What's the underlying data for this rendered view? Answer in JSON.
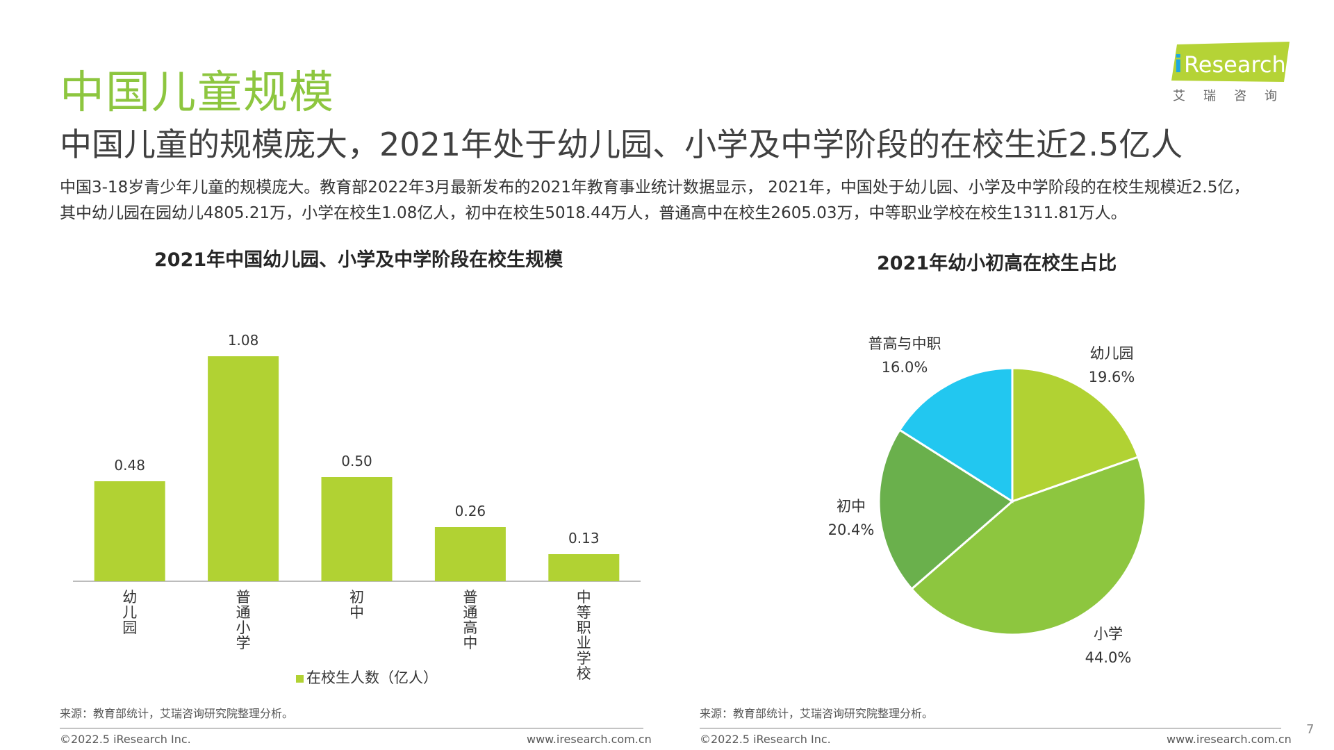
{
  "header": {
    "title": "中国儿童规模",
    "subtitle": "中国儿童的规模庞大，2021年处于幼儿园、小学及中学阶段的在校生近2.5亿人",
    "description_line1": "中国3-18岁青少年儿童的规模庞大。教育部2022年3月最新发布的2021年教育事业统计数据显示， 2021年，中国处于幼儿园、小学及中学阶段的在校生规模近2.5亿，",
    "description_line2": "其中幼儿园在园幼儿4805.21万，小学在校生1.08亿人，初中在校生5018.44万人，普通高中在校生2605.03万，中等职业学校在校生1311.81万人。"
  },
  "logo": {
    "brand_i": "i",
    "brand_rest": "Research",
    "chinese": "艾瑞咨询"
  },
  "chart_data": [
    {
      "type": "bar",
      "title": "2021年中国幼儿园、小学及中学阶段在校生规模",
      "categories": [
        "幼儿园",
        "普通小学",
        "初中",
        "普通高中",
        "中等职业学校"
      ],
      "series": [
        {
          "name": "在校生人数（亿人）",
          "values": [
            0.48,
            1.08,
            0.5,
            0.26,
            0.13
          ]
        }
      ],
      "value_labels": [
        "0.48",
        "1.08",
        "0.50",
        "0.26",
        "0.13"
      ],
      "ylim": [
        0,
        1.2
      ],
      "grid": false,
      "legend": "bottom",
      "color": "#b1d233"
    },
    {
      "type": "pie",
      "title": "2021年幼小初高在校生占比",
      "labels": [
        "幼儿园",
        "小学",
        "初中",
        "普高与中职"
      ],
      "values": [
        19.6,
        44.0,
        20.4,
        16.0
      ],
      "value_labels": [
        "19.6%",
        "44.0%",
        "20.4%",
        "16.0%"
      ],
      "colors": [
        "#b1d233",
        "#8dc63f",
        "#6ab04c",
        "#22c7f0"
      ]
    }
  ],
  "footer": {
    "source_left": "来源：教育部统计，艾瑞咨询研究院整理分析。",
    "source_right": "来源：教育部统计，艾瑞咨询研究院整理分析。",
    "copyright_left": "©2022.5 iResearch Inc.",
    "url_left": "www.iresearch.com.cn",
    "copyright_right": "©2022.5 iResearch Inc.",
    "url_right": "www.iresearch.com.cn",
    "page_number": "7"
  }
}
